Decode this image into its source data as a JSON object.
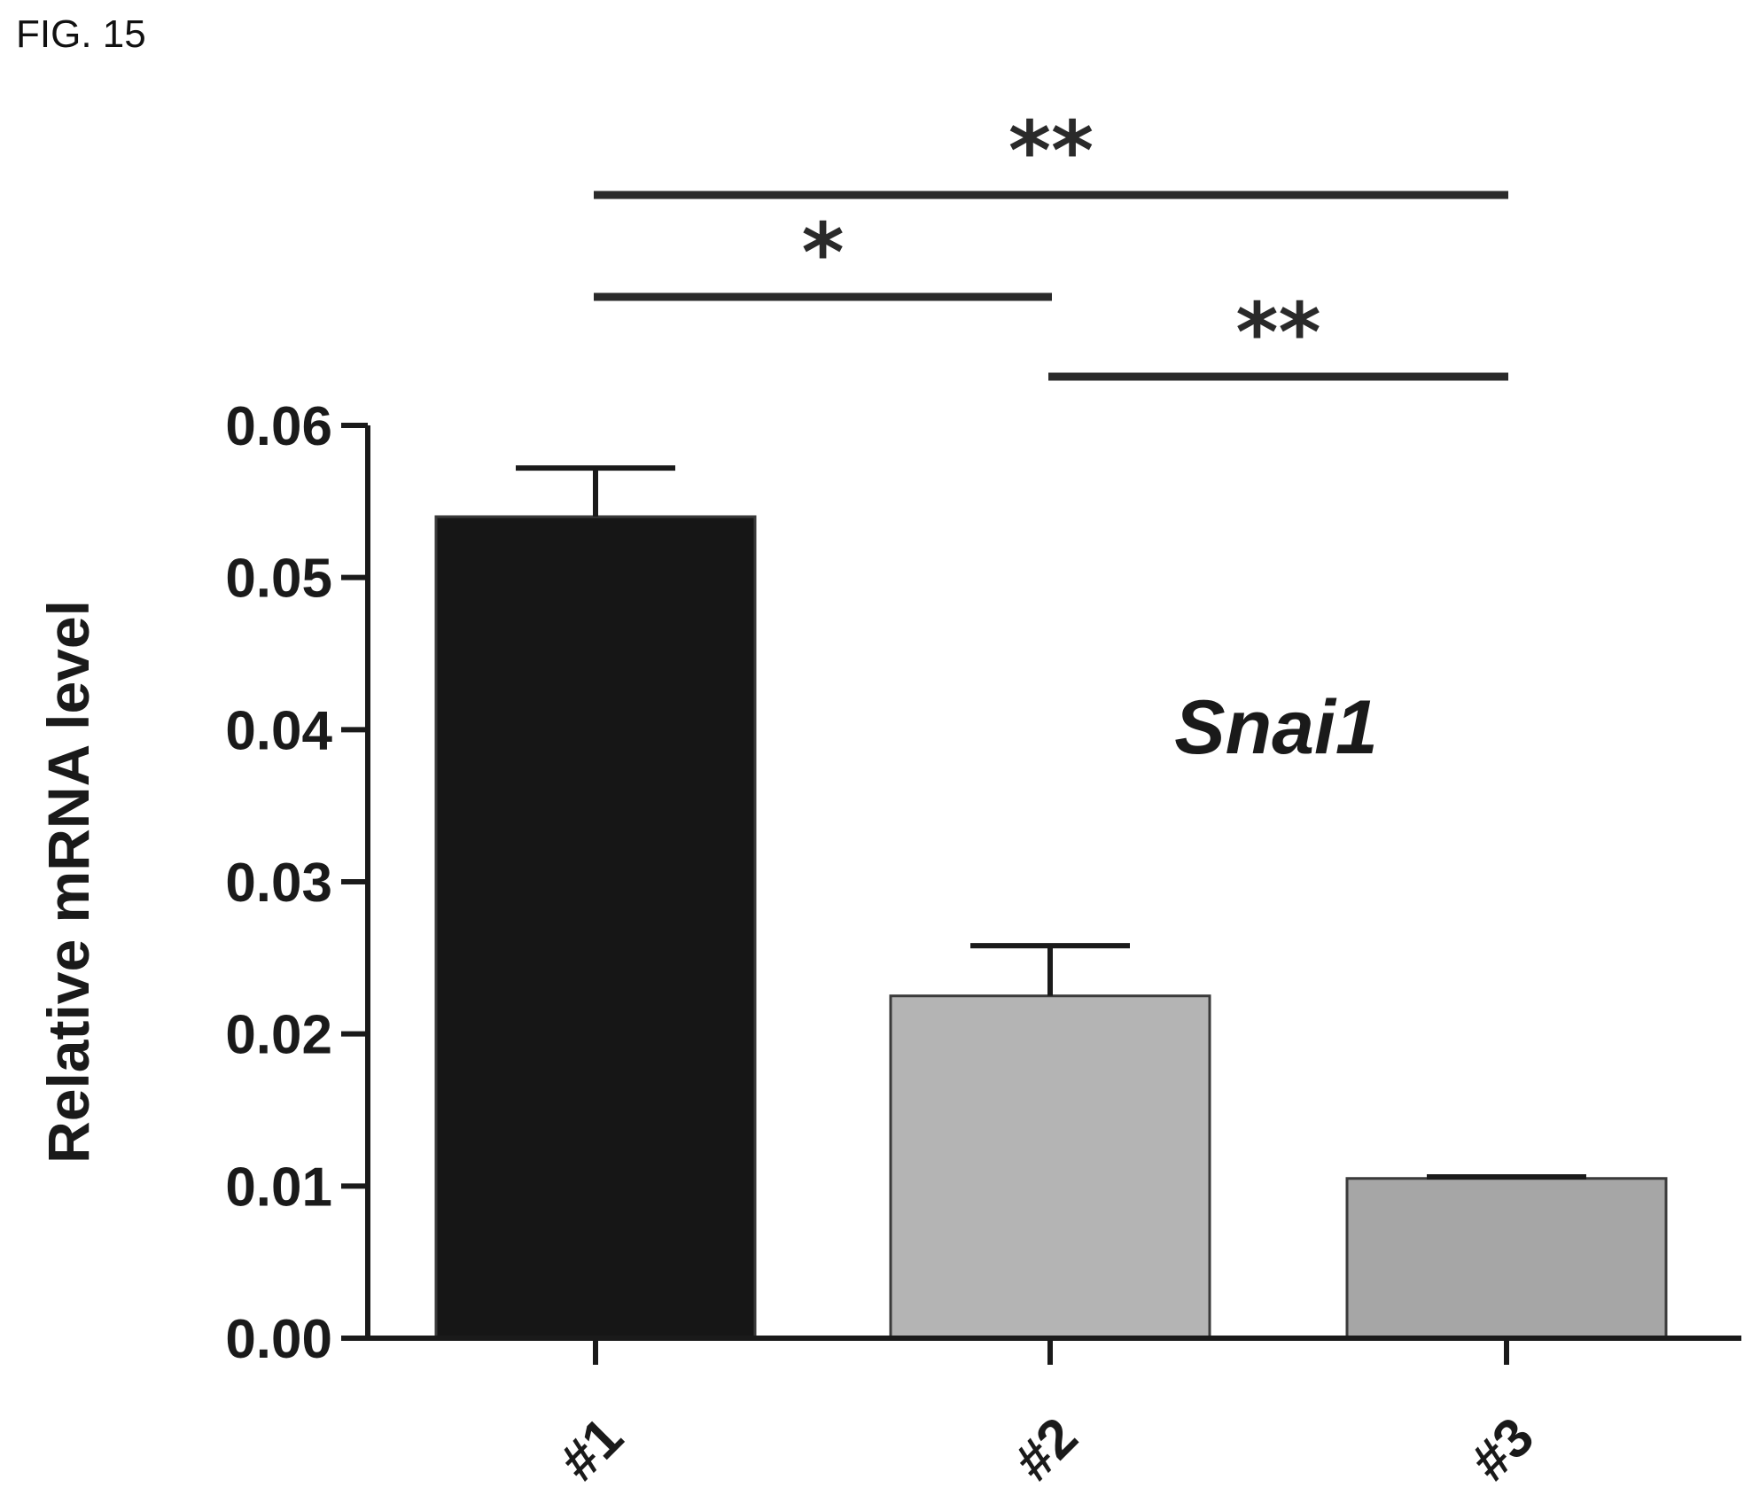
{
  "figure_label": "FIG. 15",
  "chart_data": {
    "type": "bar",
    "categories": [
      "#1",
      "#2",
      "#3"
    ],
    "values": [
      0.054,
      0.0225,
      0.0105
    ],
    "errors": [
      0.0032,
      0.0033,
      0.0001
    ],
    "ylabel": "Relative mRNA level",
    "xlabel": "",
    "ylim": [
      0,
      0.06
    ],
    "yticks": [
      "0.00",
      "0.01",
      "0.02",
      "0.03",
      "0.04",
      "0.05",
      "0.06"
    ],
    "annotation": "Snai1",
    "bar_colors": [
      "#161616",
      "#b4b4b4",
      "#a6a6a6"
    ],
    "significance": [
      {
        "from": 0,
        "to": 2,
        "label": "**"
      },
      {
        "from": 0,
        "to": 1,
        "label": "*"
      },
      {
        "from": 1,
        "to": 2,
        "label": "**"
      }
    ]
  }
}
